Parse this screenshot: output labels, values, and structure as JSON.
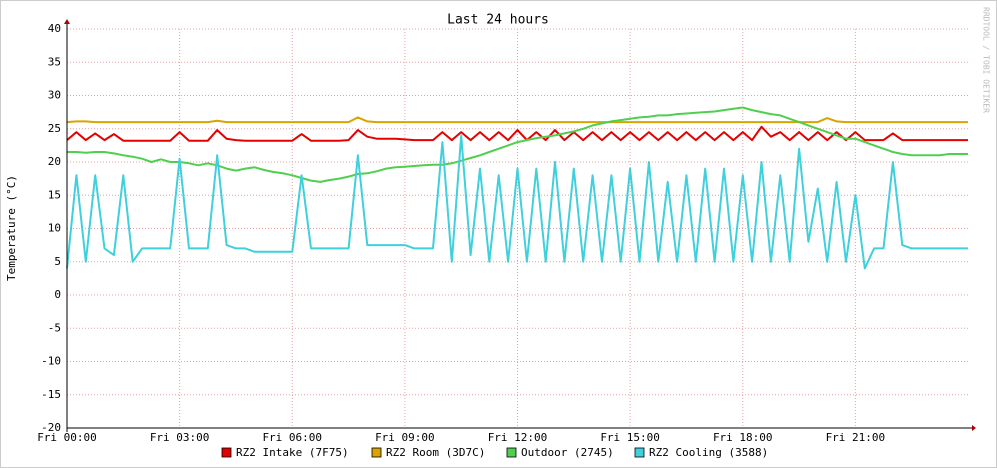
{
  "chart_data": {
    "type": "line",
    "title": "Last 24 hours",
    "y_label": "Temperature (°C)",
    "watermark": "RRDTOOL / TOBI OETIKER",
    "x": [
      0,
      0.25,
      0.5,
      0.75,
      1,
      1.25,
      1.5,
      1.75,
      2,
      2.25,
      2.5,
      2.75,
      3,
      3.25,
      3.5,
      3.75,
      4,
      4.25,
      4.5,
      4.75,
      5,
      5.25,
      5.5,
      5.75,
      6,
      6.25,
      6.5,
      6.75,
      7,
      7.25,
      7.5,
      7.75,
      8,
      8.25,
      8.5,
      8.75,
      9,
      9.25,
      9.5,
      9.75,
      10,
      10.25,
      10.5,
      10.75,
      11,
      11.25,
      11.5,
      11.75,
      12,
      12.25,
      12.5,
      12.75,
      13,
      13.25,
      13.5,
      13.75,
      14,
      14.25,
      14.5,
      14.75,
      15,
      15.25,
      15.5,
      15.75,
      16,
      16.25,
      16.5,
      16.75,
      17,
      17.25,
      17.5,
      17.75,
      18,
      18.25,
      18.5,
      18.75,
      19,
      19.25,
      19.5,
      19.75,
      20,
      20.25,
      20.5,
      20.75,
      21,
      21.25,
      21.5,
      21.75,
      22,
      22.25,
      22.5,
      22.75,
      23,
      23.25,
      23.5,
      23.75,
      24
    ],
    "xlim": [
      0,
      24
    ],
    "xticks": [
      {
        "value": 0,
        "label": "Fri 00:00"
      },
      {
        "value": 3,
        "label": "Fri 03:00"
      },
      {
        "value": 6,
        "label": "Fri 06:00"
      },
      {
        "value": 9,
        "label": "Fri 09:00"
      },
      {
        "value": 12,
        "label": "Fri 12:00"
      },
      {
        "value": 15,
        "label": "Fri 15:00"
      },
      {
        "value": 18,
        "label": "Fri 18:00"
      },
      {
        "value": 21,
        "label": "Fri 21:00"
      }
    ],
    "ylim": [
      -20,
      40
    ],
    "yticks": [
      -20,
      -15,
      -10,
      -5,
      0,
      5,
      10,
      15,
      20,
      25,
      30,
      35,
      40
    ],
    "grid": true,
    "legend": "bottom",
    "series": [
      {
        "name": "RZ2 Intake (7F75)",
        "color": "#e50000",
        "values": [
          23.3,
          24.5,
          23.3,
          24.3,
          23.3,
          24.2,
          23.2,
          23.2,
          23.2,
          23.2,
          23.2,
          23.2,
          24.5,
          23.2,
          23.2,
          23.2,
          24.8,
          23.5,
          23.3,
          23.2,
          23.2,
          23.2,
          23.2,
          23.2,
          23.2,
          24.2,
          23.2,
          23.2,
          23.2,
          23.2,
          23.3,
          24.8,
          23.8,
          23.5,
          23.5,
          23.5,
          23.4,
          23.3,
          23.3,
          23.3,
          24.5,
          23.3,
          24.5,
          23.3,
          24.5,
          23.3,
          24.5,
          23.3,
          24.8,
          23.3,
          24.5,
          23.3,
          24.8,
          23.3,
          24.5,
          23.3,
          24.5,
          23.3,
          24.5,
          23.3,
          24.5,
          23.3,
          24.5,
          23.3,
          24.5,
          23.3,
          24.5,
          23.3,
          24.5,
          23.3,
          24.5,
          23.3,
          24.5,
          23.3,
          25.3,
          23.8,
          24.5,
          23.3,
          24.5,
          23.3,
          24.5,
          23.3,
          24.5,
          23.3,
          24.5,
          23.3,
          23.3,
          23.3,
          24.3,
          23.3,
          23.3,
          23.3,
          23.3,
          23.3,
          23.3,
          23.3,
          23.3
        ]
      },
      {
        "name": "RZ2 Room (3D7C)",
        "color": "#d9a400",
        "values": [
          26.0,
          26.1,
          26.1,
          26.0,
          26.0,
          26.0,
          26.0,
          26.0,
          26.0,
          26.0,
          26.0,
          26.0,
          26.0,
          26.0,
          26.0,
          26.0,
          26.2,
          26.0,
          26.0,
          26.0,
          26.0,
          26.0,
          26.0,
          26.0,
          26.0,
          26.0,
          26.0,
          26.0,
          26.0,
          26.0,
          26.0,
          26.7,
          26.1,
          26.0,
          26.0,
          26.0,
          26.0,
          26.0,
          26.0,
          26.0,
          26.0,
          26.0,
          26.0,
          26.0,
          26.0,
          26.0,
          26.0,
          26.0,
          26.0,
          26.0,
          26.0,
          26.0,
          26.0,
          26.0,
          26.0,
          26.0,
          26.0,
          26.0,
          26.0,
          26.0,
          26.0,
          26.0,
          26.0,
          26.0,
          26.0,
          26.0,
          26.0,
          26.0,
          26.0,
          26.0,
          26.0,
          26.0,
          26.0,
          26.0,
          26.0,
          26.0,
          26.0,
          26.0,
          26.0,
          26.0,
          26.0,
          26.6,
          26.1,
          26.0,
          26.0,
          26.0,
          26.0,
          26.0,
          26.0,
          26.0,
          26.0,
          26.0,
          26.0,
          26.0,
          26.0,
          26.0,
          26.0
        ]
      },
      {
        "name": "Outdoor (2745)",
        "color": "#4ed04e",
        "values": [
          21.5,
          21.5,
          21.4,
          21.5,
          21.5,
          21.3,
          21.0,
          20.8,
          20.5,
          20.0,
          20.4,
          20.0,
          20.0,
          19.8,
          19.5,
          19.8,
          19.5,
          19.0,
          18.7,
          19.0,
          19.2,
          18.8,
          18.5,
          18.3,
          18.0,
          17.6,
          17.2,
          17.0,
          17.3,
          17.5,
          17.8,
          18.2,
          18.3,
          18.6,
          19.0,
          19.2,
          19.3,
          19.4,
          19.5,
          19.6,
          19.6,
          19.8,
          20.2,
          20.6,
          21.0,
          21.5,
          22.0,
          22.5,
          23.0,
          23.3,
          23.6,
          23.8,
          24.0,
          24.3,
          24.6,
          25.0,
          25.5,
          25.8,
          26.1,
          26.3,
          26.5,
          26.7,
          26.8,
          27.0,
          27.0,
          27.2,
          27.3,
          27.4,
          27.5,
          27.6,
          27.8,
          28.0,
          28.2,
          27.8,
          27.5,
          27.2,
          27.0,
          26.5,
          26.0,
          25.5,
          25.0,
          24.5,
          24.0,
          23.5,
          23.5,
          23.0,
          22.5,
          22.0,
          21.5,
          21.2,
          21.0,
          21.0,
          21.0,
          21.0,
          21.2,
          21.2,
          21.2
        ]
      },
      {
        "name": "RZ2 Cooling (3588)",
        "color": "#3fd0dc",
        "values": [
          4,
          18,
          5,
          18,
          7,
          6,
          18,
          5,
          7,
          7,
          7,
          7,
          20.5,
          7,
          7,
          7,
          21,
          7.5,
          7,
          7,
          6.5,
          6.5,
          6.5,
          6.5,
          6.5,
          18,
          7,
          7,
          7,
          7,
          7,
          21,
          7.5,
          7.5,
          7.5,
          7.5,
          7.5,
          7,
          7,
          7,
          23,
          5,
          24,
          6,
          19,
          5,
          18,
          5,
          19,
          5,
          19,
          5,
          20,
          5,
          19,
          5,
          18,
          5,
          18,
          5,
          19,
          5,
          20,
          5,
          17,
          5,
          18,
          5,
          19,
          5,
          19,
          5,
          18,
          5,
          20,
          5,
          18,
          5,
          22,
          8,
          16,
          5,
          17,
          5,
          15,
          4,
          7,
          7,
          20,
          7.5,
          7,
          7,
          7,
          7,
          7,
          7,
          7
        ]
      }
    ]
  }
}
